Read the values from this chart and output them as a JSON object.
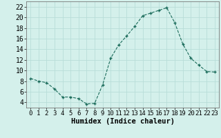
{
  "x": [
    0,
    1,
    2,
    3,
    4,
    5,
    6,
    7,
    8,
    9,
    10,
    11,
    12,
    13,
    14,
    15,
    16,
    17,
    18,
    19,
    20,
    21,
    22,
    23
  ],
  "y": [
    8.5,
    8.0,
    7.7,
    6.5,
    5.0,
    5.0,
    4.7,
    3.7,
    3.8,
    7.3,
    12.3,
    14.8,
    16.5,
    18.3,
    20.3,
    20.8,
    21.3,
    21.8,
    19.0,
    15.0,
    12.3,
    11.0,
    9.8,
    9.7
  ],
  "xlim": [
    -0.5,
    23.5
  ],
  "ylim": [
    3,
    23
  ],
  "xticks": [
    0,
    1,
    2,
    3,
    4,
    5,
    6,
    7,
    8,
    9,
    10,
    11,
    12,
    13,
    14,
    15,
    16,
    17,
    18,
    19,
    20,
    21,
    22,
    23
  ],
  "yticks": [
    4,
    6,
    8,
    10,
    12,
    14,
    16,
    18,
    20,
    22
  ],
  "xlabel": "Humidex (Indice chaleur)",
  "line_color": "#1a6b5a",
  "marker": "+",
  "bg_color": "#d4f0eb",
  "grid_color": "#b8ddd8",
  "xlabel_fontsize": 7.5,
  "tick_fontsize": 6.5,
  "ytick_fontsize": 7
}
